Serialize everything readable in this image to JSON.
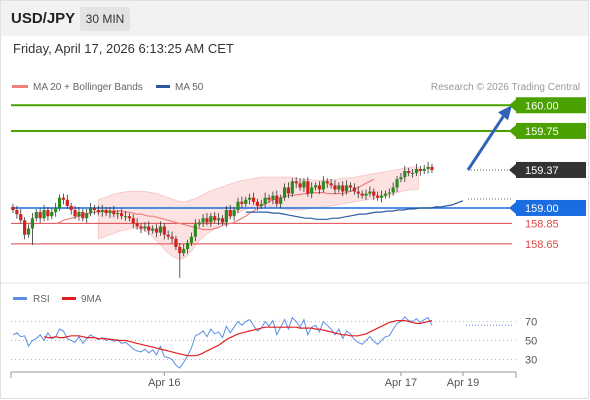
{
  "header": {
    "pair": "USD/JPY",
    "timeframe": "30 MIN"
  },
  "datetime": "Friday, April 17, 2026 6:13:25 AM CET",
  "legend": {
    "ma20": "MA 20 + Bollinger Bands",
    "ma50": "MA 50"
  },
  "credit": "Research © 2026 Trading Central",
  "rsi_legend": {
    "rsi": "RSI",
    "ma9": "9MA"
  },
  "colors": {
    "up_candle": "#2b8a1f",
    "down_candle": "#d62020",
    "ma20": "#f08080",
    "ma50": "#2c5aa0",
    "band_fill": "#fde2e2",
    "green_level": "#4aa100",
    "blue_level": "#1a6de0",
    "red_level": "#e04848",
    "current": "#333333",
    "arrow": "#2f63b8",
    "rsi": "#5b8ee6",
    "rsi_ma": "#e02020"
  },
  "chart_data": [
    {
      "type": "candlestick",
      "ylim": [
        158.25,
        160.1
      ],
      "levels": [
        {
          "value": 160.0,
          "label": "160.00",
          "style": "green-line"
        },
        {
          "value": 159.75,
          "label": "159.75",
          "style": "green-line"
        },
        {
          "value": 159.37,
          "label": "159.37",
          "style": "current"
        },
        {
          "value": 159.0,
          "label": "159.00",
          "style": "blue-line"
        },
        {
          "value": 158.85,
          "label": "158.85",
          "style": "red-line"
        },
        {
          "value": 158.65,
          "label": "158.65",
          "style": "red-line"
        }
      ],
      "x_ticks": [
        "Apr 16",
        "Apr 17",
        "Apr 19"
      ],
      "x_tick_index": [
        39,
        100,
        116
      ],
      "n_bars": 117,
      "close": [
        158.98,
        158.94,
        158.88,
        158.74,
        158.8,
        158.9,
        158.96,
        158.9,
        158.98,
        158.92,
        158.96,
        159.0,
        159.1,
        159.08,
        159.02,
        158.98,
        158.92,
        158.96,
        158.9,
        158.95,
        159.0,
        158.98,
        158.96,
        158.98,
        158.95,
        158.97,
        158.94,
        158.95,
        158.92,
        158.92,
        158.9,
        158.85,
        158.82,
        158.8,
        158.82,
        158.78,
        158.8,
        158.76,
        158.82,
        158.74,
        158.72,
        158.7,
        158.62,
        158.56,
        158.6,
        158.66,
        158.72,
        158.84,
        158.86,
        158.9,
        158.86,
        158.92,
        158.88,
        158.9,
        158.86,
        158.98,
        158.92,
        158.98,
        159.06,
        159.04,
        159.08,
        159.1,
        159.06,
        159.02,
        159.04,
        159.1,
        159.08,
        159.12,
        159.04,
        159.1,
        159.2,
        159.14,
        159.26,
        159.24,
        159.2,
        159.26,
        159.14,
        159.2,
        159.22,
        159.18,
        159.26,
        159.24,
        159.22,
        159.18,
        159.22,
        159.16,
        159.22,
        159.2,
        159.16,
        159.14,
        159.12,
        159.14,
        159.16,
        159.12,
        159.1,
        159.12,
        159.14,
        159.15,
        159.2,
        159.28,
        159.3,
        159.36,
        159.34,
        159.34,
        159.38,
        159.36,
        159.38,
        159.4,
        159.37
      ],
      "ma20": [
        158.85,
        158.86,
        158.88,
        158.89,
        158.9,
        158.91,
        158.92,
        158.93,
        158.94,
        158.95,
        158.96,
        158.96,
        158.97,
        158.97,
        158.97,
        158.97,
        158.97,
        158.97,
        158.96,
        158.96,
        158.95,
        158.94,
        158.94,
        158.93,
        158.92,
        158.92,
        158.91,
        158.9,
        158.89,
        158.88,
        158.87,
        158.86,
        158.85,
        158.84,
        158.83,
        158.82,
        158.81,
        158.8,
        158.79,
        158.79,
        158.79,
        158.8,
        158.81,
        158.83,
        158.84,
        158.85,
        158.86,
        158.88,
        158.9,
        158.92,
        158.95,
        158.97,
        159.0,
        159.02,
        159.04,
        159.06,
        159.08,
        159.09,
        159.1,
        159.11,
        159.12,
        159.12,
        159.13,
        159.13,
        159.14,
        159.14,
        159.15,
        159.15,
        159.15,
        159.15,
        159.14,
        159.14,
        159.14,
        159.14,
        159.14,
        159.15,
        159.16,
        159.18,
        159.2,
        159.22,
        159.24,
        159.26,
        159.28
      ],
      "ma20_start_index": 11,
      "band_upper": [
        159.08,
        159.1,
        159.12,
        159.14,
        159.15,
        159.16,
        159.16,
        159.16,
        159.16,
        159.15,
        159.14,
        159.12,
        159.1,
        159.08,
        159.06,
        159.06,
        159.08,
        159.1,
        159.13,
        159.16,
        159.18,
        159.2,
        159.22,
        159.24,
        159.26,
        159.27,
        159.28,
        159.29,
        159.3,
        159.3,
        159.3,
        159.3,
        159.3,
        159.3,
        159.29,
        159.28,
        159.28,
        159.27,
        159.27,
        159.27,
        159.28,
        159.28,
        159.29,
        159.29,
        159.3,
        159.31,
        159.32,
        159.33,
        159.34,
        159.35,
        159.36,
        159.37,
        159.38,
        159.39,
        159.4,
        159.4
      ],
      "band_lower": [
        158.7,
        158.72,
        158.74,
        158.76,
        158.78,
        158.79,
        158.8,
        158.8,
        158.78,
        158.74,
        158.68,
        158.62,
        158.56,
        158.52,
        158.5,
        158.52,
        158.58,
        158.66,
        158.72,
        158.76,
        158.8,
        158.84,
        158.88,
        158.92,
        158.95,
        158.98,
        159.0,
        159.02,
        159.02,
        159.02,
        159.01,
        159.0,
        158.99,
        158.98,
        158.98,
        158.98,
        158.99,
        159.0,
        159.0,
        159.01,
        159.02,
        159.03,
        159.04,
        159.05,
        159.06,
        159.07,
        159.08,
        159.09,
        159.1,
        159.11,
        159.12,
        159.14,
        159.16,
        159.17,
        159.18,
        159.18
      ],
      "band_start_index": 22,
      "band_step": 1.5,
      "ma50": [
        158.96,
        158.96,
        158.96,
        158.96,
        158.96,
        158.95,
        158.95,
        158.94,
        158.93,
        158.92,
        158.91,
        158.9,
        158.9,
        158.89,
        158.89,
        158.89,
        158.9,
        158.9,
        158.91,
        158.92,
        158.93,
        158.94,
        158.94,
        158.95,
        158.96,
        158.96,
        158.97,
        158.97,
        158.98,
        158.98,
        158.99,
        158.99,
        159.0,
        159.0,
        159.0,
        159.01,
        159.01,
        159.02,
        159.03,
        159.05,
        159.07
      ],
      "ma50_start_index": 60,
      "forecast": [
        159.37,
        160.0
      ]
    },
    {
      "type": "line",
      "name": "RSI panel",
      "ylim": [
        20,
        80
      ],
      "levels": [
        70,
        50,
        30
      ],
      "rsi": [
        56,
        58,
        54,
        55,
        44,
        50,
        52,
        56,
        50,
        58,
        52,
        54,
        62,
        60,
        52,
        50,
        48,
        54,
        47,
        52,
        56,
        53,
        51,
        53,
        50,
        52,
        49,
        51,
        47,
        48,
        45,
        41,
        39,
        38,
        41,
        37,
        40,
        35,
        44,
        33,
        32,
        30,
        24,
        21,
        27,
        34,
        42,
        55,
        57,
        60,
        54,
        62,
        57,
        59,
        53,
        65,
        58,
        64,
        70,
        66,
        70,
        72,
        66,
        60,
        63,
        70,
        65,
        71,
        56,
        64,
        72,
        62,
        74,
        70,
        64,
        72,
        56,
        64,
        66,
        59,
        70,
        66,
        62,
        56,
        62,
        52,
        60,
        57,
        51,
        48,
        46,
        50,
        54,
        49,
        46,
        50,
        54,
        55,
        62,
        68,
        70,
        75,
        71,
        70,
        73,
        69,
        72,
        74,
        66
      ],
      "ma9_start_index": 8,
      "ma9": [
        54,
        53,
        53,
        54,
        53,
        53,
        54,
        55,
        55,
        55,
        54,
        53,
        53,
        53,
        52,
        52,
        52,
        51,
        51,
        50,
        50,
        50,
        49,
        48,
        47,
        46,
        45,
        44,
        43,
        42,
        41,
        40,
        39,
        38,
        37,
        36,
        35,
        34,
        34,
        34,
        35,
        37,
        39,
        41,
        43,
        45,
        48,
        51,
        53,
        55,
        57,
        58,
        59,
        60,
        61,
        62,
        63,
        64,
        64,
        64,
        64,
        64,
        64,
        64,
        64,
        64,
        63,
        63,
        63,
        63,
        62,
        62,
        61,
        60,
        59,
        58,
        57,
        56,
        56,
        55,
        55,
        55,
        56,
        57,
        59,
        61,
        63,
        65,
        67,
        69,
        70,
        71,
        71,
        71,
        70,
        69,
        68,
        68,
        69,
        70,
        71
      ]
    }
  ]
}
